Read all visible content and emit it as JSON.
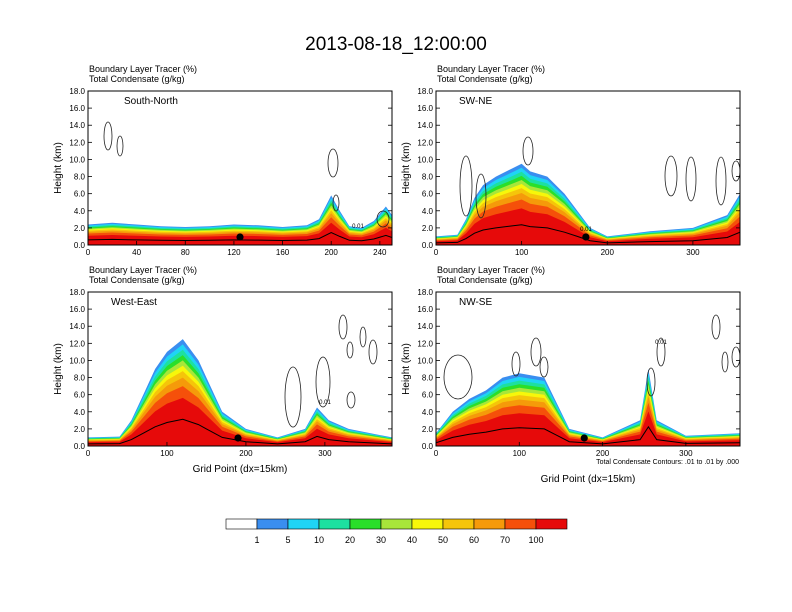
{
  "title": "2013-08-18_12:00:00",
  "panel_header": {
    "line1": "Boundary Layer Tracer   (%)",
    "line2": "Total Condensate   (g/kg)"
  },
  "ylabel": "Height (km)",
  "xlabel": "Grid Point (dx=15km)",
  "contour_note": "Total Condensate Contours: .01 to .01 by .000",
  "contour_label": "0.01",
  "colorbar": {
    "labels": [
      "1",
      "5",
      "10",
      "20",
      "30",
      "40",
      "50",
      "60",
      "70",
      "100"
    ],
    "colors": [
      "#ffffff",
      "#3a8ef0",
      "#1fd4f5",
      "#1de0a0",
      "#2adf2a",
      "#a8e63a",
      "#f7f70a",
      "#f5c50a",
      "#f59a0a",
      "#f5500a",
      "#e60a0a"
    ]
  },
  "chart_data": [
    {
      "type": "heatmap",
      "name": "South-North",
      "xlim": [
        0,
        250
      ],
      "xticks": [
        "0",
        "40",
        "80",
        "120",
        "160",
        "200",
        "240"
      ],
      "ylim": [
        0,
        18
      ],
      "yticks": [
        "0.0",
        "2.0",
        "4.0",
        "6.0",
        "8.0",
        "10.0",
        "12.0",
        "14.0",
        "16.0",
        "18.0"
      ],
      "marker_x": 125,
      "tracer_top_km": [
        [
          0,
          2.4
        ],
        [
          20,
          2.6
        ],
        [
          40,
          2.4
        ],
        [
          60,
          2.2
        ],
        [
          80,
          2.1
        ],
        [
          100,
          2.2
        ],
        [
          120,
          2.4
        ],
        [
          140,
          2.3
        ],
        [
          160,
          2.1
        ],
        [
          180,
          2.3
        ],
        [
          190,
          3.0
        ],
        [
          200,
          5.8
        ],
        [
          207,
          4.0
        ],
        [
          215,
          2.2
        ],
        [
          225,
          2.0
        ],
        [
          235,
          2.8
        ],
        [
          245,
          4.5
        ],
        [
          250,
          3.5
        ]
      ]
    },
    {
      "type": "heatmap",
      "name": "SW-NE",
      "xlim": [
        0,
        355
      ],
      "xticks": [
        "0",
        "100",
        "200",
        "300"
      ],
      "ylim": [
        0,
        18
      ],
      "yticks": [
        "0.0",
        "2.0",
        "4.0",
        "6.0",
        "8.0",
        "10.0",
        "12.0",
        "14.0",
        "16.0",
        "18.0"
      ],
      "marker_x": 175,
      "tracer_top_km": [
        [
          0,
          1.0
        ],
        [
          25,
          1.2
        ],
        [
          35,
          3.0
        ],
        [
          45,
          5.5
        ],
        [
          55,
          7.0
        ],
        [
          70,
          8.0
        ],
        [
          90,
          9.0
        ],
        [
          100,
          9.5
        ],
        [
          110,
          8.6
        ],
        [
          130,
          8.0
        ],
        [
          150,
          6.0
        ],
        [
          165,
          4.0
        ],
        [
          180,
          2.0
        ],
        [
          200,
          1.0
        ],
        [
          250,
          1.6
        ],
        [
          300,
          2.0
        ],
        [
          340,
          3.5
        ],
        [
          355,
          6.0
        ]
      ]
    },
    {
      "type": "heatmap",
      "name": "West-East",
      "xlim": [
        0,
        385
      ],
      "xticks": [
        "0",
        "100",
        "200",
        "300"
      ],
      "ylim": [
        0,
        18
      ],
      "yticks": [
        "0.0",
        "2.0",
        "4.0",
        "6.0",
        "8.0",
        "10.0",
        "12.0",
        "14.0",
        "16.0",
        "18.0"
      ],
      "marker_x": 190,
      "tracer_top_km": [
        [
          0,
          1.0
        ],
        [
          40,
          1.1
        ],
        [
          55,
          3.0
        ],
        [
          70,
          6.0
        ],
        [
          85,
          9.0
        ],
        [
          100,
          11.0
        ],
        [
          120,
          12.5
        ],
        [
          140,
          10.0
        ],
        [
          150,
          8.0
        ],
        [
          170,
          4.0
        ],
        [
          200,
          2.0
        ],
        [
          240,
          1.0
        ],
        [
          275,
          2.0
        ],
        [
          290,
          4.5
        ],
        [
          305,
          3.0
        ],
        [
          330,
          2.0
        ],
        [
          385,
          1.0
        ]
      ]
    },
    {
      "type": "heatmap",
      "name": "NW-SE",
      "xlim": [
        0,
        365
      ],
      "xticks": [
        "0",
        "100",
        "200",
        "300"
      ],
      "ylim": [
        0,
        18
      ],
      "yticks": [
        "0.0",
        "2.0",
        "4.0",
        "6.0",
        "8.0",
        "10.0",
        "12.0",
        "14.0",
        "16.0",
        "18.0"
      ],
      "marker_x": 178,
      "tracer_top_km": [
        [
          0,
          1.5
        ],
        [
          20,
          4.0
        ],
        [
          40,
          5.5
        ],
        [
          60,
          6.5
        ],
        [
          80,
          8.0
        ],
        [
          100,
          8.5
        ],
        [
          130,
          8.0
        ],
        [
          145,
          5.0
        ],
        [
          160,
          2.0
        ],
        [
          200,
          1.0
        ],
        [
          245,
          3.0
        ],
        [
          255,
          9.0
        ],
        [
          265,
          3.0
        ],
        [
          300,
          1.2
        ],
        [
          365,
          1.5
        ]
      ]
    }
  ]
}
